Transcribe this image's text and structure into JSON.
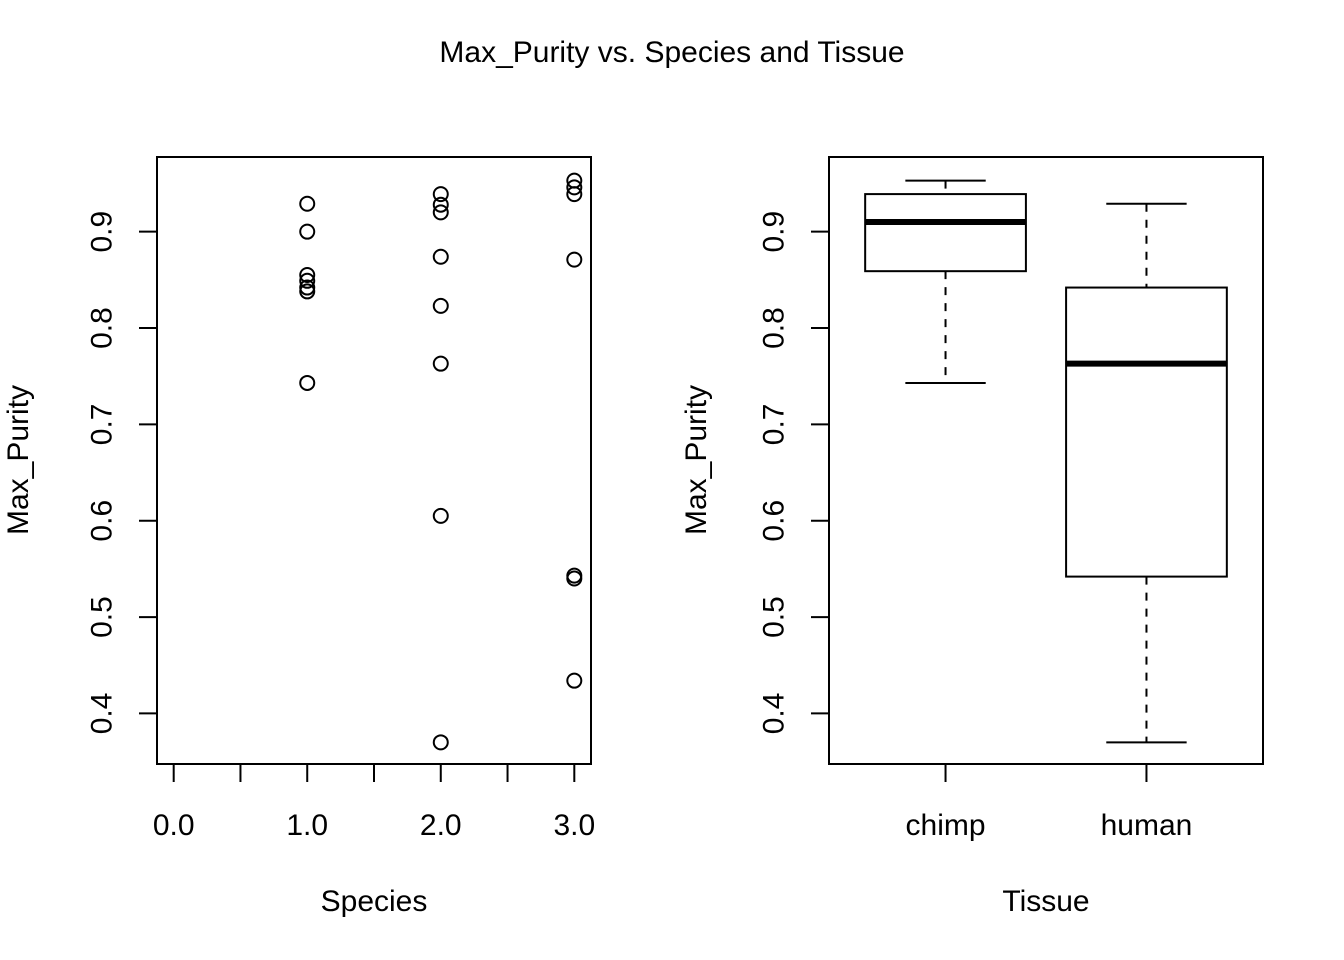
{
  "title": "Max_Purity vs. Species and Tissue",
  "colors": {
    "ink": "#000000",
    "background": "#ffffff"
  },
  "chart_data": [
    {
      "type": "scatter",
      "xlabel": "Species",
      "ylabel": "Max_Purity",
      "xlim": [
        -0.125,
        3.125
      ],
      "ylim": [
        0.3475,
        0.9775
      ],
      "x_ticks": [
        0.0,
        0.5,
        1.0,
        1.5,
        2.0,
        2.5,
        3.0
      ],
      "x_tick_labels": [
        "0.0",
        "",
        "1.0",
        "",
        "2.0",
        "",
        "3.0"
      ],
      "y_ticks": [
        0.4,
        0.5,
        0.6,
        0.7,
        0.8,
        0.9
      ],
      "y_tick_labels": [
        "0.4",
        "0.5",
        "0.6",
        "0.7",
        "0.8",
        "0.9"
      ],
      "grid": false,
      "marker": "open-circle",
      "points": [
        {
          "x": 1,
          "y": 0.929
        },
        {
          "x": 1,
          "y": 0.9
        },
        {
          "x": 1,
          "y": 0.855
        },
        {
          "x": 1,
          "y": 0.849
        },
        {
          "x": 1,
          "y": 0.842
        },
        {
          "x": 1,
          "y": 0.838
        },
        {
          "x": 1,
          "y": 0.743
        },
        {
          "x": 2,
          "y": 0.939
        },
        {
          "x": 2,
          "y": 0.928
        },
        {
          "x": 2,
          "y": 0.92
        },
        {
          "x": 2,
          "y": 0.874
        },
        {
          "x": 2,
          "y": 0.823
        },
        {
          "x": 2,
          "y": 0.763
        },
        {
          "x": 2,
          "y": 0.605
        },
        {
          "x": 2,
          "y": 0.37
        },
        {
          "x": 3,
          "y": 0.953
        },
        {
          "x": 3,
          "y": 0.946
        },
        {
          "x": 3,
          "y": 0.939
        },
        {
          "x": 3,
          "y": 0.871
        },
        {
          "x": 3,
          "y": 0.543
        },
        {
          "x": 3,
          "y": 0.54
        },
        {
          "x": 3,
          "y": 0.434
        }
      ]
    },
    {
      "type": "box",
      "xlabel": "Tissue",
      "ylabel": "Max_Purity",
      "ylim": [
        0.3475,
        0.9775
      ],
      "y_ticks": [
        0.4,
        0.5,
        0.6,
        0.7,
        0.8,
        0.9
      ],
      "y_tick_labels": [
        "0.4",
        "0.5",
        "0.6",
        "0.7",
        "0.8",
        "0.9"
      ],
      "grid": false,
      "categories": [
        "chimp",
        "human"
      ],
      "boxes": [
        {
          "name": "chimp",
          "min": 0.743,
          "q1": 0.859,
          "median": 0.91,
          "q3": 0.939,
          "max": 0.953
        },
        {
          "name": "human",
          "min": 0.37,
          "q1": 0.542,
          "median": 0.763,
          "q3": 0.842,
          "max": 0.929
        }
      ]
    }
  ]
}
